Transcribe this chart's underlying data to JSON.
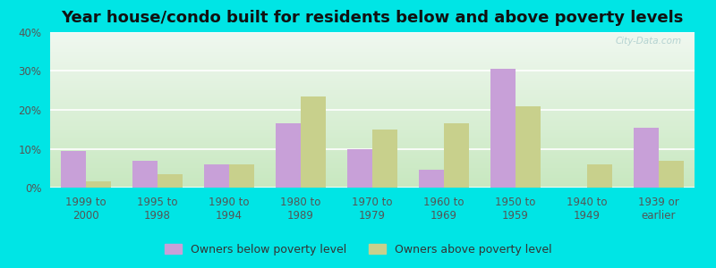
{
  "title": "Year house/condo built for residents below and above poverty levels",
  "categories": [
    "1999 to\n2000",
    "1995 to\n1998",
    "1990 to\n1994",
    "1980 to\n1989",
    "1970 to\n1979",
    "1960 to\n1969",
    "1950 to\n1959",
    "1940 to\n1949",
    "1939 or\nearlier"
  ],
  "below_poverty": [
    9.5,
    7.0,
    6.0,
    16.5,
    10.0,
    4.5,
    30.5,
    0.0,
    15.5
  ],
  "above_poverty": [
    1.5,
    3.5,
    6.0,
    23.5,
    15.0,
    16.5,
    21.0,
    6.0,
    7.0
  ],
  "below_color": "#c8a0d8",
  "above_color": "#c8d08c",
  "outer_bg": "#00e5e5",
  "chart_bg_top": "#f0f8f0",
  "chart_bg_bottom": "#c8e8c0",
  "ylim": [
    0,
    40
  ],
  "yticks": [
    0,
    10,
    20,
    30,
    40
  ],
  "ylabel_format": "{}%",
  "legend_below": "Owners below poverty level",
  "legend_above": "Owners above poverty level",
  "bar_width": 0.35,
  "title_fontsize": 13,
  "tick_fontsize": 8.5,
  "legend_fontsize": 9,
  "grid_color": "#ffffff",
  "watermark": "City-Data.com"
}
